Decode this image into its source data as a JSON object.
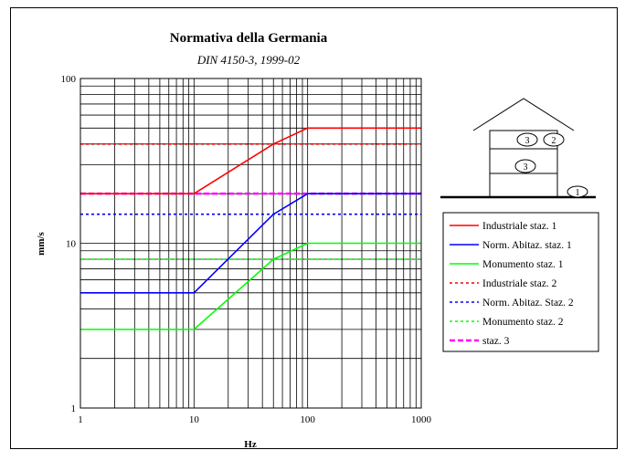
{
  "chart_data": {
    "type": "line",
    "title": "Normativa della Germania",
    "subtitle": "DIN 4150-3, 1999-02",
    "xlabel": "Hz",
    "ylabel": "mm/s",
    "x_scale": "log",
    "y_scale": "log",
    "xlim": [
      1,
      1000
    ],
    "ylim": [
      1,
      100
    ],
    "x_ticks": [
      "1",
      "10",
      "100",
      "1000"
    ],
    "y_ticks": [
      "1",
      "10",
      "100"
    ],
    "grid": true,
    "legend_position": "right",
    "series": [
      {
        "name": "Industriale staz. 1",
        "color": "#ff0000",
        "dash": "solid",
        "x": [
          1,
          10,
          50,
          100,
          1000
        ],
        "y": [
          20,
          20,
          40,
          50,
          50
        ]
      },
      {
        "name": "Norm. Abitaz. staz. 1",
        "color": "#0000ff",
        "dash": "solid",
        "x": [
          1,
          10,
          50,
          100,
          1000
        ],
        "y": [
          5,
          5,
          15,
          20,
          20
        ]
      },
      {
        "name": "Monumento staz. 1",
        "color": "#00ff00",
        "dash": "solid",
        "x": [
          1,
          10,
          50,
          100,
          1000
        ],
        "y": [
          3,
          3,
          8,
          10,
          10
        ]
      },
      {
        "name": "Industriale staz. 2",
        "color": "#ff0000",
        "dash": "dotted",
        "x": [
          1,
          1000
        ],
        "y": [
          40,
          40
        ]
      },
      {
        "name": "Norm. Abitaz. Staz. 2",
        "color": "#0000ff",
        "dash": "dotted",
        "x": [
          1,
          1000
        ],
        "y": [
          15,
          15
        ]
      },
      {
        "name": "Monumento staz. 2",
        "color": "#00ff00",
        "dash": "dotted",
        "x": [
          1,
          1000
        ],
        "y": [
          8,
          8
        ]
      },
      {
        "name": "staz. 3",
        "color": "#ff00ff",
        "dash": "dashed",
        "x": [
          1,
          1000
        ],
        "y": [
          20,
          20
        ]
      }
    ]
  },
  "diagram": {
    "labels": [
      "3",
      "2",
      "3",
      "1"
    ]
  }
}
